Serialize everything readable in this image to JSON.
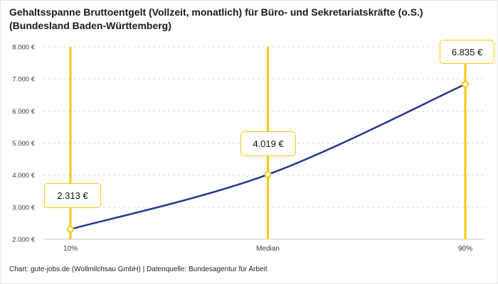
{
  "title": {
    "text": "Gehaltsspanne Bruttoentgelt (Vollzeit, monatlich) für Büro- und Sekretariatskräfte (o.S.) (Bundesland Baden-Württemberg)"
  },
  "footer": {
    "text": "Chart: gute-jobs.de (Wollmilchsau GmbH) | Datenquelle: Bundesagentur für Arbeit"
  },
  "colors": {
    "line": "#24388d",
    "accent_yellow": "#f6c915",
    "grid": "#d9d9d9",
    "axis": "#c9c9c9",
    "text": "#1a1a1a"
  },
  "chart_data": {
    "type": "line",
    "title": "Gehaltsspanne Bruttoentgelt (Vollzeit, monatlich) für Büro- und Sekretariatskräfte (o.S.) (Bundesland Baden-Württemberg)",
    "categories": [
      "10%",
      "Median",
      "90%"
    ],
    "values": [
      2313,
      4019,
      6835
    ],
    "value_labels": [
      "2.313 €",
      "4.019 €",
      "6.835 €"
    ],
    "ylim": [
      2000,
      8000
    ],
    "yticks": [
      2000,
      3000,
      4000,
      5000,
      6000,
      7000,
      8000
    ],
    "ytick_labels": [
      "2.000 €",
      "3.000 €",
      "4.000 €",
      "5.000 €",
      "6.000 €",
      "7.000 €",
      "8.000 €"
    ],
    "xlabel": "",
    "ylabel": "",
    "grid": true,
    "legend": false,
    "annotation_source": "Chart: gute-jobs.de (Wollmilchsau GmbH) | Datenquelle: Bundesagentur für Arbeit"
  }
}
